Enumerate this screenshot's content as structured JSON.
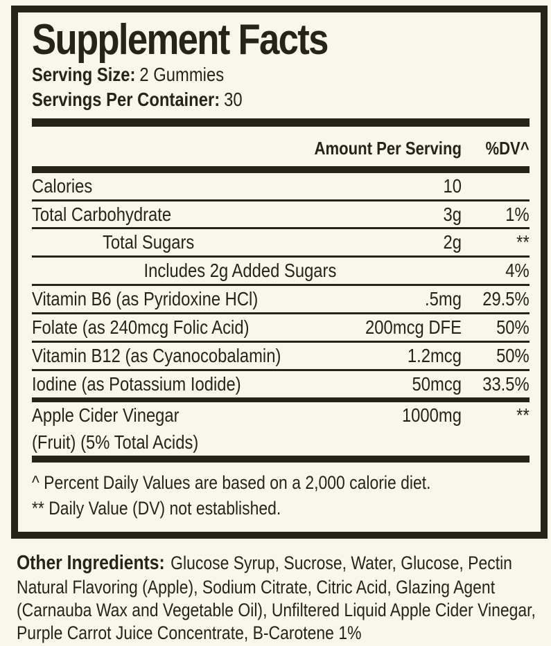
{
  "colors": {
    "ink": "#262419",
    "background": "#f9f7ec"
  },
  "label": {
    "title": "Supplement Facts",
    "serving_size_label": "Serving Size:",
    "serving_size_value": "2 Gummies",
    "servings_per_container_label": "Servings Per Container:",
    "servings_per_container_value": "30",
    "header": {
      "amount": "Amount Per Serving",
      "dv": "%DV^"
    },
    "rows": [
      {
        "name": "Calories",
        "amount": "10",
        "dv": "",
        "indent": 0
      },
      {
        "name": "Total Carbohydrate",
        "amount": "3g",
        "dv": "1%",
        "indent": 0
      },
      {
        "name": "Total Sugars",
        "amount": "2g",
        "dv": "**",
        "indent": 1
      },
      {
        "name": "Includes 2g Added Sugars",
        "amount": "",
        "dv": "4%",
        "indent": 2
      },
      {
        "name": "Vitamin B6 (as Pyridoxine HCl)",
        "amount": ".5mg",
        "dv": "29.5%",
        "indent": 0
      },
      {
        "name": "Folate (as 240mcg Folic Acid)",
        "amount": "200mcg DFE",
        "dv": "50%",
        "indent": 0
      },
      {
        "name": "Vitamin B12 (as Cyanocobalamin)",
        "amount": "1.2mcg",
        "dv": "50%",
        "indent": 0
      },
      {
        "name": "Iodine (as Potassium Iodide)",
        "amount": "50mcg",
        "dv": "33.5%",
        "indent": 0
      },
      {
        "name": "Apple Cider Vinegar",
        "name2": "(Fruit) (5% Total Acids)",
        "amount": "1000mg",
        "dv": "**",
        "indent": 0
      }
    ],
    "footnotes": [
      "^ Percent Daily Values are based on a 2,000 calorie diet.",
      "** Daily Value (DV) not established."
    ],
    "other_ingredients_label": "Other Ingredients:",
    "other_ingredients_text": "Glucose Syrup, Sucrose, Water, Glucose, Pectin Natural Flavoring (Apple), Sodium Citrate, Citric Acid, Glazing Agent (Carnauba Wax and Vegetable Oil), Unfiltered Liquid Apple Cider Vinegar, Purple Carrot Juice Concentrate, B-Carotene 1%"
  }
}
